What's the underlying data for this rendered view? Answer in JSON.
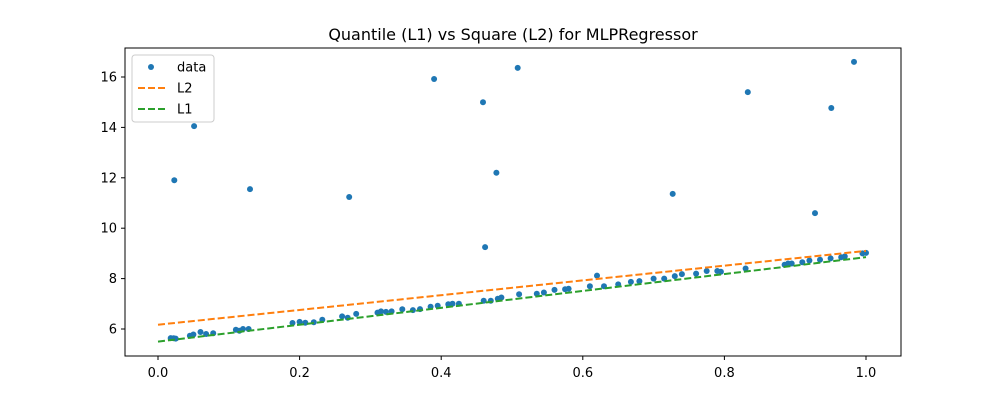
{
  "chart_data": {
    "type": "scatter",
    "title": "Quantile (L1) vs Square (L2) for MLPRegressor",
    "xlabel": "",
    "ylabel": "",
    "xlim": [
      -0.045,
      1.051
    ],
    "ylim": [
      4.9,
      17.1
    ],
    "x_ticks": [
      0.0,
      0.2,
      0.4,
      0.6,
      0.8,
      1.0
    ],
    "x_tick_labels": [
      "0.0",
      "0.2",
      "0.4",
      "0.6",
      "0.8",
      "1.0"
    ],
    "y_ticks": [
      6,
      8,
      10,
      12,
      14,
      16
    ],
    "y_tick_labels": [
      "6",
      "8",
      "10",
      "12",
      "14",
      "16"
    ],
    "grid": false,
    "legend_position": "upper left",
    "legend": [
      {
        "label": "data",
        "kind": "marker",
        "color": "#1f77b4"
      },
      {
        "label": "L2",
        "kind": "dashed-line",
        "color": "#ff7f0e"
      },
      {
        "label": "L1",
        "kind": "dashed-line",
        "color": "#2ca02c"
      }
    ],
    "series": [
      {
        "name": "data",
        "kind": "scatter",
        "color": "#1f77b4",
        "points": [
          [
            0.018,
            5.64
          ],
          [
            0.022,
            5.63
          ],
          [
            0.025,
            5.62
          ],
          [
            0.045,
            5.73
          ],
          [
            0.05,
            5.78
          ],
          [
            0.06,
            5.88
          ],
          [
            0.068,
            5.8
          ],
          [
            0.078,
            5.83
          ],
          [
            0.11,
            5.97
          ],
          [
            0.115,
            5.93
          ],
          [
            0.12,
            6.0
          ],
          [
            0.128,
            6.0
          ],
          [
            0.19,
            6.24
          ],
          [
            0.2,
            6.28
          ],
          [
            0.208,
            6.25
          ],
          [
            0.22,
            6.27
          ],
          [
            0.232,
            6.37
          ],
          [
            0.26,
            6.5
          ],
          [
            0.268,
            6.45
          ],
          [
            0.28,
            6.6
          ],
          [
            0.31,
            6.65
          ],
          [
            0.315,
            6.7
          ],
          [
            0.322,
            6.68
          ],
          [
            0.33,
            6.7
          ],
          [
            0.345,
            6.78
          ],
          [
            0.36,
            6.75
          ],
          [
            0.37,
            6.79
          ],
          [
            0.385,
            6.88
          ],
          [
            0.395,
            6.92
          ],
          [
            0.41,
            6.98
          ],
          [
            0.416,
            7.0
          ],
          [
            0.425,
            7.0
          ],
          [
            0.46,
            7.12
          ],
          [
            0.47,
            7.12
          ],
          [
            0.48,
            7.2
          ],
          [
            0.485,
            7.25
          ],
          [
            0.51,
            7.38
          ],
          [
            0.535,
            7.4
          ],
          [
            0.545,
            7.45
          ],
          [
            0.56,
            7.55
          ],
          [
            0.575,
            7.58
          ],
          [
            0.58,
            7.6
          ],
          [
            0.61,
            7.7
          ],
          [
            0.62,
            8.12
          ],
          [
            0.63,
            7.7
          ],
          [
            0.65,
            7.77
          ],
          [
            0.668,
            7.87
          ],
          [
            0.68,
            7.9
          ],
          [
            0.7,
            8.0
          ],
          [
            0.715,
            8.0
          ],
          [
            0.73,
            8.1
          ],
          [
            0.74,
            8.18
          ],
          [
            0.76,
            8.2
          ],
          [
            0.775,
            8.3
          ],
          [
            0.79,
            8.3
          ],
          [
            0.795,
            8.27
          ],
          [
            0.83,
            8.4
          ],
          [
            0.885,
            8.55
          ],
          [
            0.89,
            8.6
          ],
          [
            0.895,
            8.6
          ],
          [
            0.91,
            8.65
          ],
          [
            0.92,
            8.72
          ],
          [
            0.935,
            8.75
          ],
          [
            0.95,
            8.8
          ],
          [
            0.965,
            8.85
          ],
          [
            0.97,
            8.88
          ],
          [
            0.995,
            9.0
          ],
          [
            1.0,
            9.02
          ],
          [
            0.023,
            11.9
          ],
          [
            0.051,
            14.05
          ],
          [
            0.13,
            11.55
          ],
          [
            0.27,
            11.24
          ],
          [
            0.39,
            15.92
          ],
          [
            0.459,
            15.0
          ],
          [
            0.462,
            9.25
          ],
          [
            0.478,
            12.2
          ],
          [
            0.508,
            16.36
          ],
          [
            0.727,
            11.36
          ],
          [
            0.833,
            15.4
          ],
          [
            0.928,
            10.6
          ],
          [
            0.951,
            14.77
          ],
          [
            0.983,
            16.6
          ]
        ]
      },
      {
        "name": "L2",
        "kind": "dashed-line",
        "color": "#ff7f0e",
        "x": [
          0.0,
          1.0
        ],
        "y": [
          6.17,
          9.1
        ]
      },
      {
        "name": "L1",
        "kind": "dashed-line",
        "color": "#2ca02c",
        "x": [
          0.0,
          1.0
        ],
        "y": [
          5.5,
          8.85
        ]
      }
    ]
  }
}
